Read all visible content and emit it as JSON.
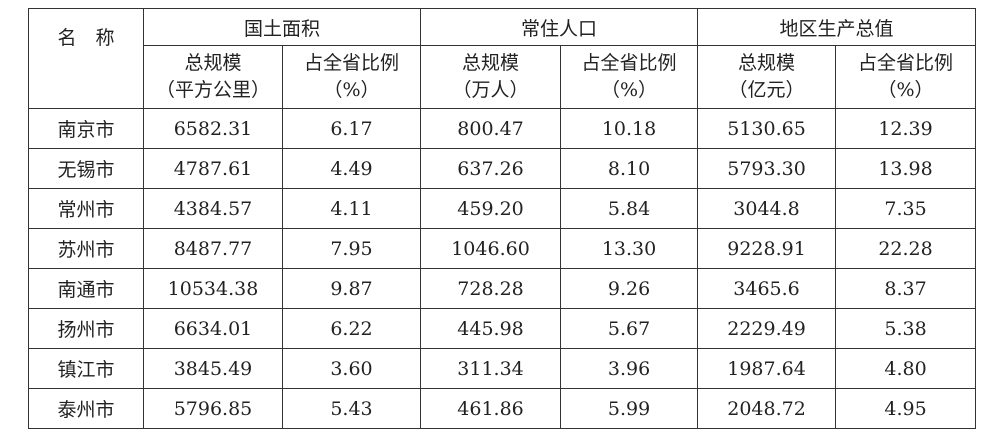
{
  "table": {
    "name_header": "名　称",
    "groups": [
      "国土面积",
      "常住人口",
      "地区生产总值"
    ],
    "sub": [
      [
        "总规模",
        "（平方公里）"
      ],
      [
        "占全省比例",
        "（%）"
      ],
      [
        "总规模",
        "（万人）"
      ],
      [
        "占全省比例",
        "（%）"
      ],
      [
        "总规模",
        "（亿元）"
      ],
      [
        "占全省比例",
        "（%）"
      ]
    ],
    "rows": [
      [
        "南京市",
        "6582.31",
        "6.17",
        "800.47",
        "10.18",
        "5130.65",
        "12.39"
      ],
      [
        "无锡市",
        "4787.61",
        "4.49",
        "637.26",
        "8.10",
        "5793.30",
        "13.98"
      ],
      [
        "常州市",
        "4384.57",
        "4.11",
        "459.20",
        "5.84",
        "3044.8",
        "7.35"
      ],
      [
        "苏州市",
        "8487.77",
        "7.95",
        "1046.60",
        "13.30",
        "9228.91",
        "22.28"
      ],
      [
        "南通市",
        "10534.38",
        "9.87",
        "728.28",
        "9.26",
        "3465.6",
        "8.37"
      ],
      [
        "扬州市",
        "6634.01",
        "6.22",
        "445.98",
        "5.67",
        "2229.49",
        "5.38"
      ],
      [
        "镇江市",
        "3845.49",
        "3.60",
        "311.34",
        "3.96",
        "1987.64",
        "4.80"
      ],
      [
        "泰州市",
        "5796.85",
        "5.43",
        "461.86",
        "5.99",
        "2048.72",
        "4.95"
      ]
    ]
  }
}
